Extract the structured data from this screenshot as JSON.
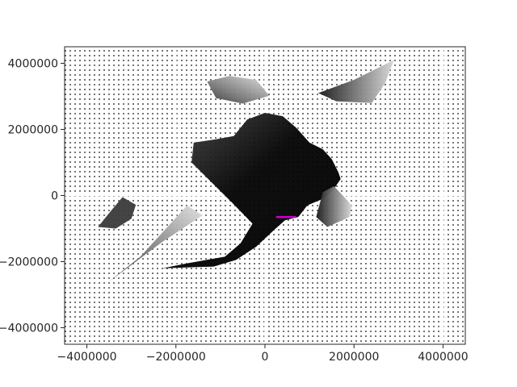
{
  "chart_data": {
    "type": "heatmap",
    "title": "",
    "xlabel": "",
    "ylabel": "",
    "xlim": [
      -4500000,
      4500000
    ],
    "ylim": [
      -4500000,
      4500000
    ],
    "xticks": [
      {
        "value": -4000000,
        "label": "−4000000"
      },
      {
        "value": -2000000,
        "label": "−2000000"
      },
      {
        "value": 0,
        "label": "0"
      },
      {
        "value": 2000000,
        "label": "2000000"
      },
      {
        "value": 4000000,
        "label": "4000000"
      }
    ],
    "yticks": [
      {
        "value": 4000000,
        "label": "4000000"
      },
      {
        "value": 2000000,
        "label": "2000000"
      },
      {
        "value": 0,
        "label": "0"
      },
      {
        "value": -2000000,
        "label": "−2000000"
      },
      {
        "value": -4000000,
        "label": "−4000000"
      }
    ],
    "grid": true,
    "colormap": "greyscale",
    "background_markers": "grid of small black dots covering the domain",
    "regions": [
      {
        "name": "main-landmass",
        "points": [
          [
            -1600000,
            1600000
          ],
          [
            -1100000,
            1700000
          ],
          [
            -700000,
            1800000
          ],
          [
            -400000,
            2300000
          ],
          [
            0,
            2500000
          ],
          [
            400000,
            2400000
          ],
          [
            700000,
            2050000
          ],
          [
            1000000,
            1600000
          ],
          [
            1300000,
            1400000
          ],
          [
            1500000,
            1100000
          ],
          [
            1650000,
            700000
          ],
          [
            1700000,
            500000
          ],
          [
            1550000,
            200000
          ],
          [
            1300000,
            -100000
          ],
          [
            950000,
            -300000
          ],
          [
            750000,
            -650000
          ],
          [
            450000,
            -750000
          ],
          [
            200000,
            -1050000
          ],
          [
            -200000,
            -1550000
          ],
          [
            -650000,
            -1950000
          ],
          [
            -1150000,
            -2150000
          ],
          [
            -2300000,
            -2200000
          ],
          [
            -1750000,
            -2050000
          ],
          [
            -900000,
            -1850000
          ],
          [
            -550000,
            -1450000
          ],
          [
            -280000,
            -850000
          ],
          [
            -750000,
            -200000
          ],
          [
            -1200000,
            400000
          ],
          [
            -1650000,
            1000000
          ]
        ]
      },
      {
        "name": "eastern-arm",
        "points": [
          [
            1300000,
            100000
          ],
          [
            1550000,
            280000
          ],
          [
            1750000,
            0
          ],
          [
            1950000,
            -300000
          ],
          [
            1900000,
            -650000
          ],
          [
            1400000,
            -950000
          ],
          [
            1150000,
            -650000
          ]
        ]
      },
      {
        "name": "northern-landmass",
        "points": [
          [
            -1300000,
            3450000
          ],
          [
            -800000,
            3620000
          ],
          [
            -200000,
            3500000
          ],
          [
            100000,
            3020000
          ],
          [
            -500000,
            2780000
          ],
          [
            -1100000,
            2950000
          ]
        ]
      },
      {
        "name": "northeast-landmass",
        "points": [
          [
            1200000,
            3100000
          ],
          [
            2000000,
            3500000
          ],
          [
            2900000,
            4100000
          ],
          [
            2700000,
            3400000
          ],
          [
            2400000,
            2800000
          ],
          [
            1600000,
            2850000
          ]
        ]
      },
      {
        "name": "western-island",
        "points": [
          [
            -3750000,
            -950000
          ],
          [
            -3450000,
            -450000
          ],
          [
            -3200000,
            -50000
          ],
          [
            -2900000,
            -280000
          ],
          [
            -3000000,
            -700000
          ],
          [
            -3350000,
            -1000000
          ]
        ]
      },
      {
        "name": "southwest-arm",
        "points": [
          [
            -3500000,
            -2600000
          ],
          [
            -2800000,
            -1850000
          ],
          [
            -1750000,
            -300000
          ],
          [
            -1400000,
            -600000
          ],
          [
            -2300000,
            -1400000
          ],
          [
            -3000000,
            -2100000
          ]
        ]
      }
    ],
    "marker_line": {
      "color": "#cc00cc",
      "points": [
        [
          250000,
          -650000
        ],
        [
          700000,
          -650000
        ]
      ]
    }
  }
}
